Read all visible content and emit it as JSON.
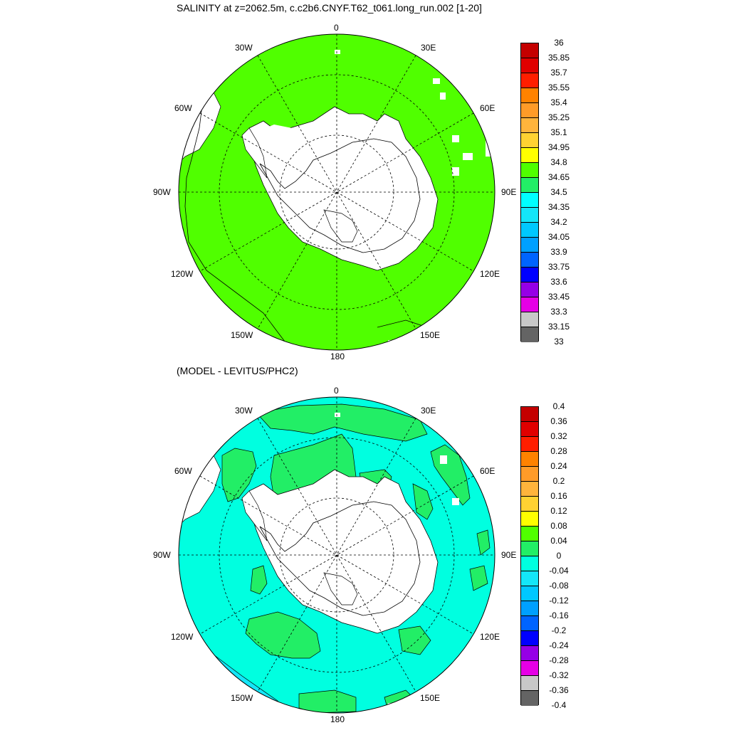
{
  "titles": {
    "top": "SALINITY at z=2062.5m, c.c2b6.CNYF.T62_t061.long_run.002 [1-20]",
    "bottom": "(MODEL - LEVITUS/PHC2)"
  },
  "longitude_labels": {
    "lon_0": "0",
    "lon_30e": "30E",
    "lon_60e": "60E",
    "lon_90e": "90E",
    "lon_120e": "120E",
    "lon_150e": "150E",
    "lon_180": "180",
    "lon_150w": "150W",
    "lon_120w": "120W",
    "lon_90w": "90W",
    "lon_60w": "60W",
    "lon_30w": "30W"
  },
  "colorbar_top": {
    "labels": [
      "36",
      "35.85",
      "35.7",
      "35.55",
      "35.4",
      "35.25",
      "35.1",
      "34.95",
      "34.8",
      "34.65",
      "34.5",
      "34.35",
      "34.2",
      "34.05",
      "33.9",
      "33.75",
      "33.6",
      "33.45",
      "33.3",
      "33.15",
      "33"
    ],
    "colors": [
      "#c40000",
      "#e00000",
      "#ff1e00",
      "#ff8200",
      "#ff9b28",
      "#ffb43c",
      "#ffd232",
      "#ffff00",
      "#50ff00",
      "#22ee66",
      "#00ffff",
      "#14e6f8",
      "#00c8ff",
      "#00a0ff",
      "#0064ff",
      "#0000ff",
      "#9600e6",
      "#e600e6",
      "#c8c8c8",
      "#646464"
    ]
  },
  "colorbar_bottom": {
    "labels": [
      "0.4",
      "0.36",
      "0.32",
      "0.28",
      "0.24",
      "0.2",
      "0.16",
      "0.12",
      "0.08",
      "0.04",
      "0",
      "-0.04",
      "-0.08",
      "-0.12",
      "-0.16",
      "-0.2",
      "-0.24",
      "-0.28",
      "-0.32",
      "-0.36",
      "-0.4"
    ],
    "colors": [
      "#c40000",
      "#e00000",
      "#ff1e00",
      "#ff8200",
      "#ff9b28",
      "#ffb43c",
      "#ffd232",
      "#ffff00",
      "#50ff00",
      "#22ee66",
      "#00ffe0",
      "#14e6f8",
      "#00c8ff",
      "#00a0ff",
      "#0064ff",
      "#0000ff",
      "#9600e6",
      "#e600e6",
      "#c8c8c8",
      "#646464"
    ]
  },
  "map_colors": {
    "top_field": "#50ff00",
    "bottom_field": "#00ffe0",
    "bottom_positive": "#22ee66",
    "bottom_negative": "#14e6f8"
  }
}
